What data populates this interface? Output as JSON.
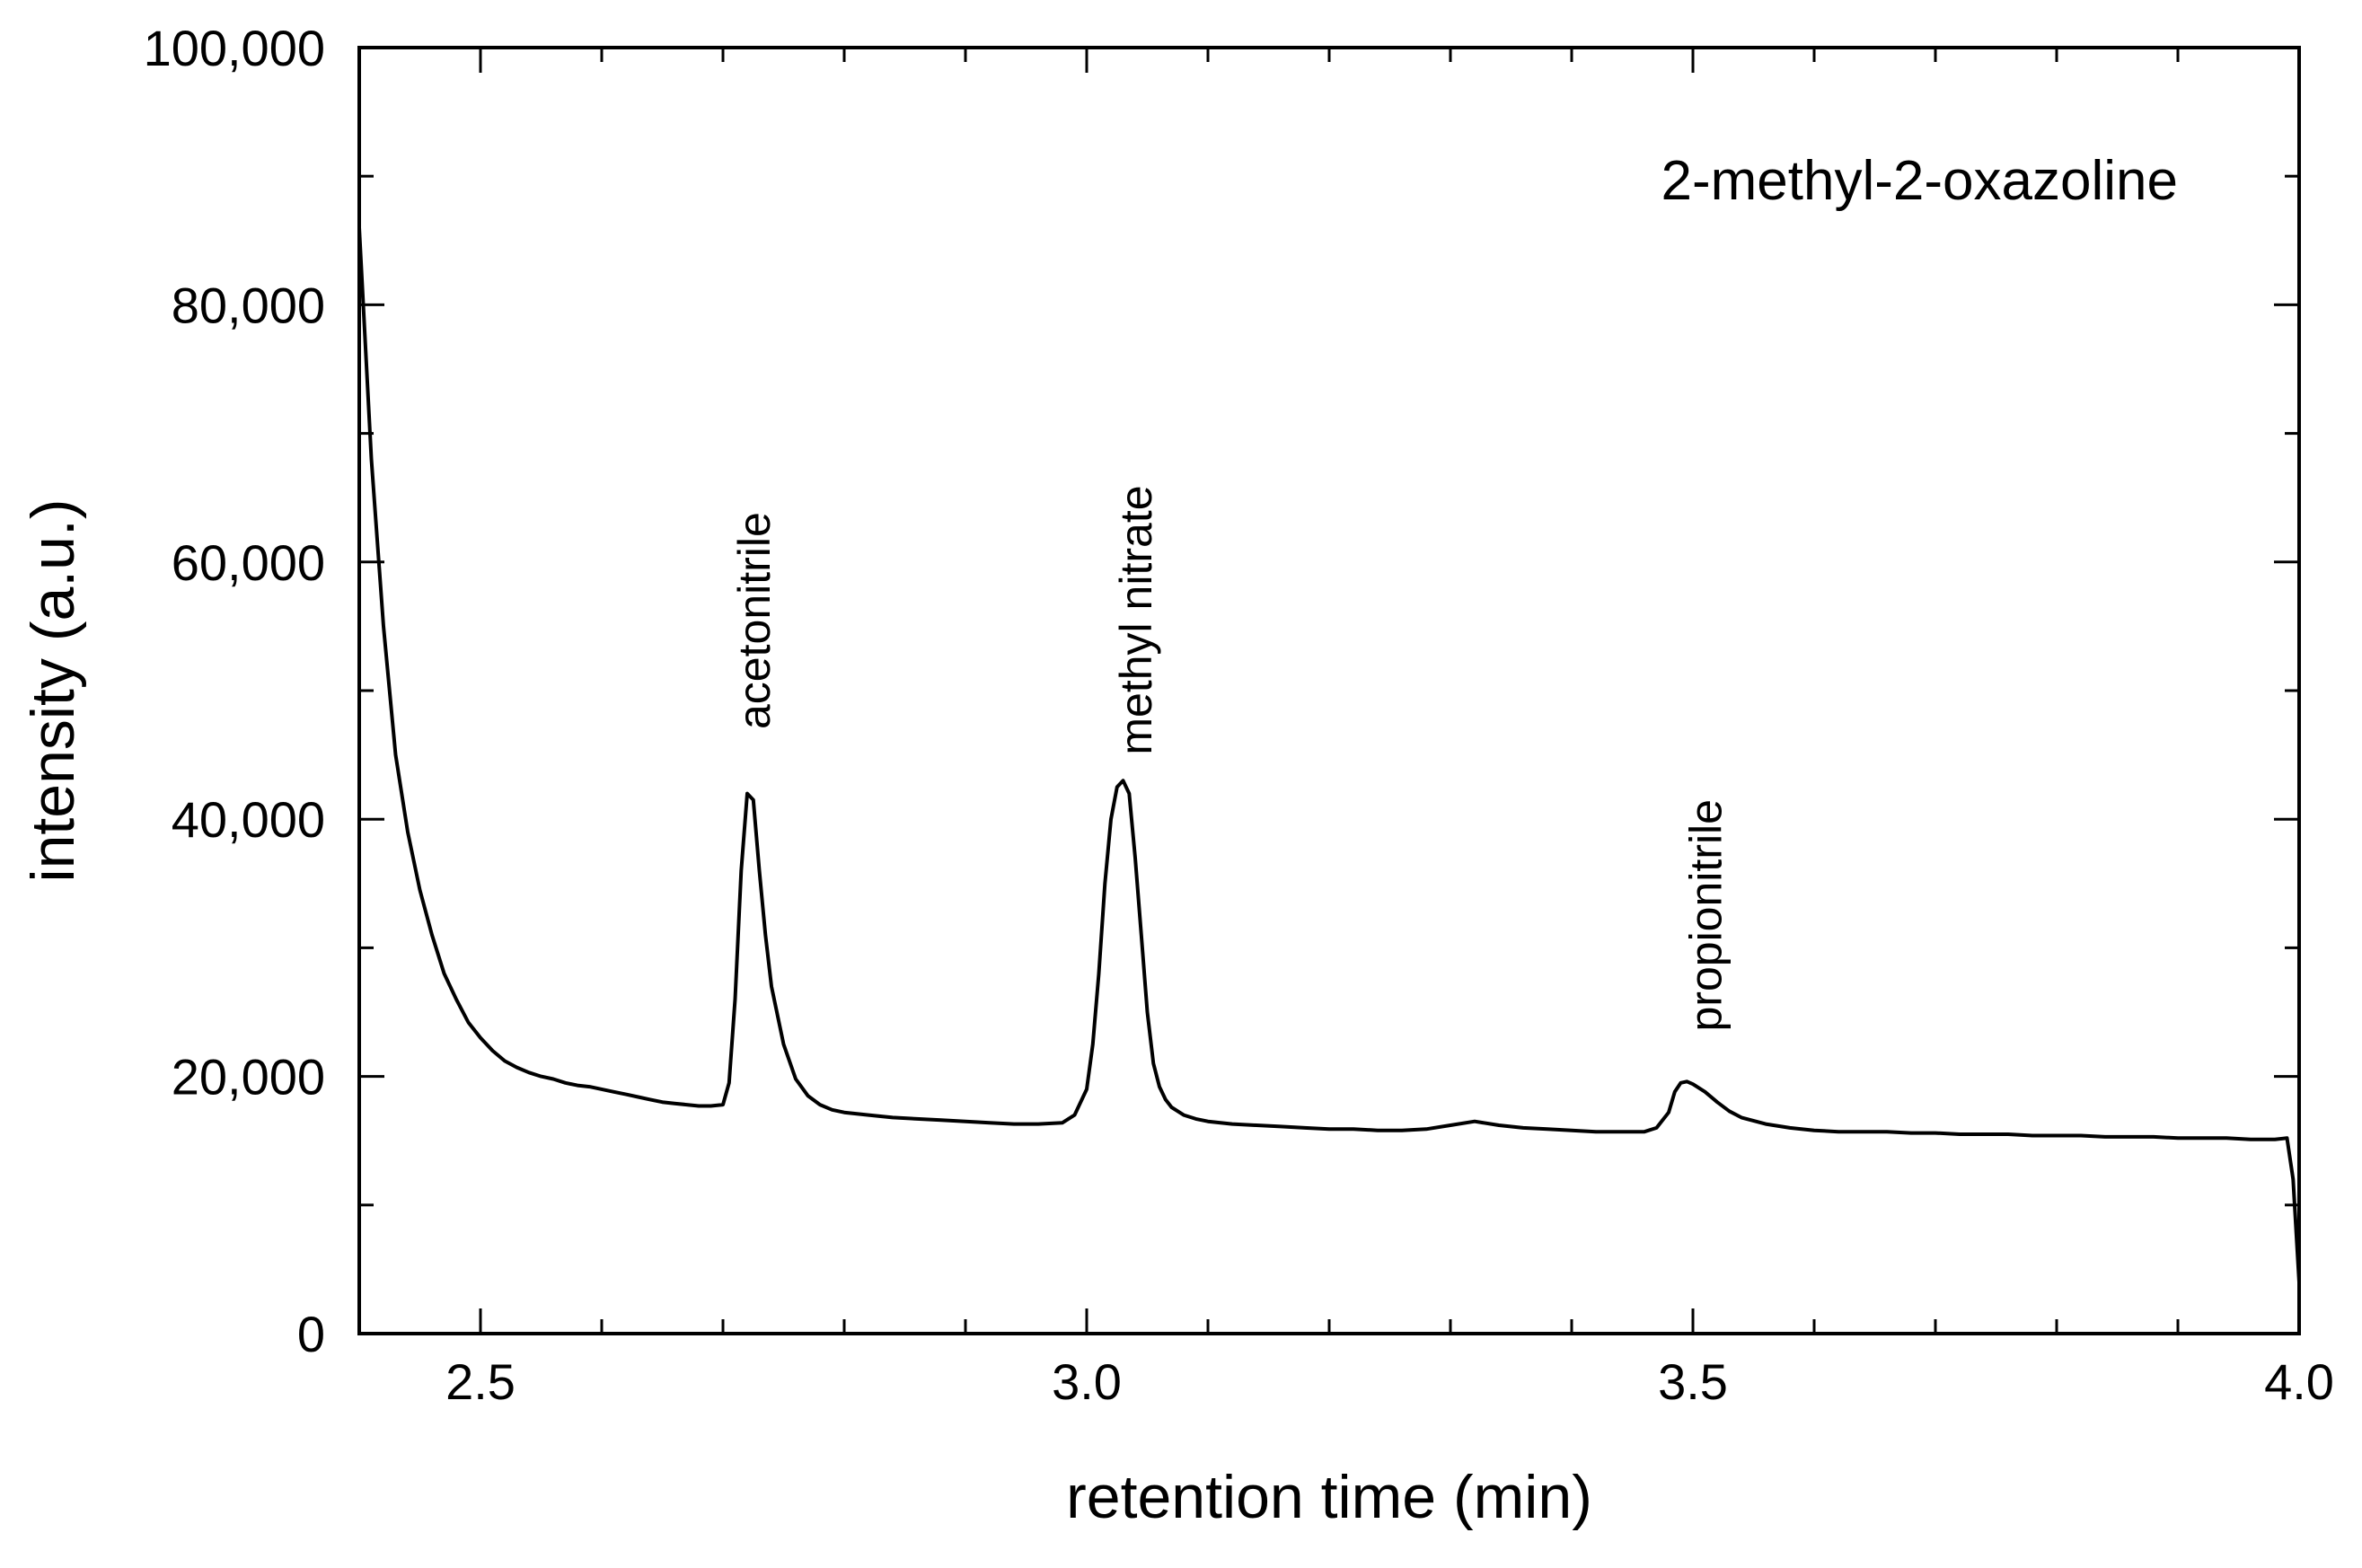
{
  "chart_data": {
    "type": "line",
    "title": "2-methyl-2-oxazoline",
    "xlabel": "retention time (min)",
    "ylabel": "intensity (a.u.)",
    "xlim": [
      2.4,
      4.0
    ],
    "ylim": [
      0,
      100000
    ],
    "x_ticks": [
      2.5,
      3.0,
      3.5,
      4.0
    ],
    "x_tick_labels": [
      "2.5",
      "3.0",
      "3.5",
      "4.0"
    ],
    "y_ticks": [
      0,
      20000,
      40000,
      60000,
      80000,
      100000
    ],
    "y_tick_labels": [
      "0",
      "20,000",
      "40,000",
      "60,000",
      "80,000",
      "100,000"
    ],
    "grid": false,
    "legend_position": "top-right",
    "series": [
      {
        "name": "2-methyl-2-oxazoline",
        "color": "#000000",
        "x": [
          2.4,
          2.41,
          2.42,
          2.43,
          2.44,
          2.45,
          2.46,
          2.47,
          2.48,
          2.49,
          2.5,
          2.51,
          2.52,
          2.53,
          2.54,
          2.55,
          2.56,
          2.57,
          2.58,
          2.59,
          2.6,
          2.61,
          2.62,
          2.63,
          2.64,
          2.65,
          2.66,
          2.67,
          2.68,
          2.69,
          2.7,
          2.705,
          2.71,
          2.715,
          2.72,
          2.725,
          2.73,
          2.735,
          2.74,
          2.75,
          2.76,
          2.77,
          2.78,
          2.79,
          2.8,
          2.82,
          2.84,
          2.86,
          2.88,
          2.9,
          2.92,
          2.94,
          2.96,
          2.98,
          2.99,
          3.0,
          3.005,
          3.01,
          3.015,
          3.02,
          3.025,
          3.03,
          3.035,
          3.04,
          3.045,
          3.05,
          3.055,
          3.06,
          3.065,
          3.07,
          3.075,
          3.08,
          3.09,
          3.1,
          3.12,
          3.14,
          3.16,
          3.18,
          3.2,
          3.22,
          3.24,
          3.26,
          3.28,
          3.3,
          3.32,
          3.34,
          3.36,
          3.38,
          3.4,
          3.42,
          3.44,
          3.46,
          3.47,
          3.48,
          3.485,
          3.49,
          3.495,
          3.5,
          3.51,
          3.52,
          3.53,
          3.54,
          3.56,
          3.58,
          3.6,
          3.62,
          3.64,
          3.66,
          3.68,
          3.7,
          3.72,
          3.74,
          3.76,
          3.78,
          3.8,
          3.82,
          3.84,
          3.86,
          3.88,
          3.9,
          3.92,
          3.94,
          3.96,
          3.98,
          3.99,
          3.995,
          4.0
        ],
        "y": [
          86000,
          68000,
          55000,
          45000,
          39000,
          34500,
          31000,
          28000,
          26000,
          24200,
          23000,
          22000,
          21200,
          20700,
          20300,
          20000,
          19800,
          19500,
          19300,
          19200,
          19000,
          18800,
          18600,
          18400,
          18200,
          18000,
          17900,
          17800,
          17700,
          17700,
          17800,
          19500,
          26000,
          36000,
          42000,
          41500,
          36000,
          31000,
          27000,
          22500,
          19800,
          18500,
          17800,
          17400,
          17200,
          17000,
          16800,
          16700,
          16600,
          16500,
          16400,
          16300,
          16300,
          16400,
          17000,
          19000,
          22500,
          28000,
          35000,
          40000,
          42500,
          43000,
          42000,
          37000,
          31000,
          25000,
          21000,
          19200,
          18200,
          17600,
          17300,
          17000,
          16700,
          16500,
          16300,
          16200,
          16100,
          16000,
          15900,
          15900,
          15800,
          15800,
          15900,
          16200,
          16500,
          16200,
          16000,
          15900,
          15800,
          15700,
          15700,
          15700,
          16000,
          17200,
          18800,
          19500,
          19600,
          19400,
          18800,
          18000,
          17300,
          16800,
          16300,
          16000,
          15800,
          15700,
          15700,
          15700,
          15600,
          15600,
          15500,
          15500,
          15500,
          15400,
          15400,
          15400,
          15300,
          15300,
          15300,
          15200,
          15200,
          15200,
          15100,
          15100,
          15200,
          12000,
          4000
        ]
      }
    ],
    "annotations": [
      {
        "text": "acetonitrile",
        "x": 2.725,
        "y": 47000,
        "orientation": "vertical"
      },
      {
        "text": "methyl nitrate",
        "x": 3.04,
        "y": 45000,
        "orientation": "vertical"
      },
      {
        "text": "propionitrile",
        "x": 3.51,
        "y": 23500,
        "orientation": "vertical"
      }
    ]
  }
}
